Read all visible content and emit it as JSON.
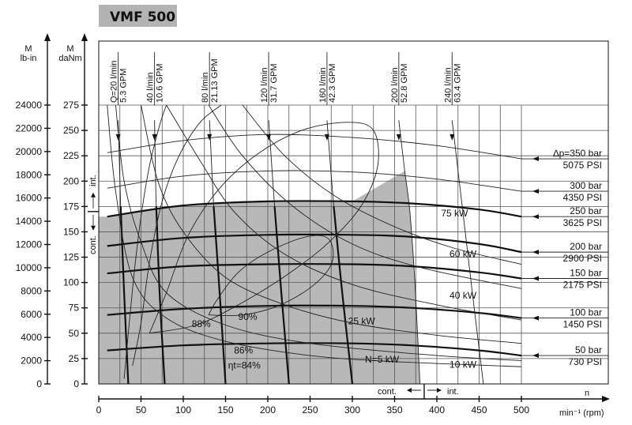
{
  "title": "VMF 500",
  "axes": {
    "left_outer_label_1": "M",
    "left_outer_label_2": "lb-in",
    "left_inner_label_1": "M",
    "left_inner_label_2": "daNm",
    "bottom_label": "min⁻¹ (rpm)",
    "bottom_letter": "n",
    "int_top": "int.",
    "cont_left": "cont.",
    "cont_bottom": "cont.",
    "int_bottom": "int."
  },
  "chart_data": {
    "type": "line",
    "x_ticks": [
      0,
      50,
      100,
      150,
      200,
      250,
      300,
      350,
      400,
      450,
      500
    ],
    "x_tick_labels": [
      "0",
      "50",
      "100",
      "150",
      "200",
      "250",
      "300",
      "350",
      "400",
      "450",
      "500"
    ],
    "y_daNm_ticks": [
      0,
      25,
      50,
      75,
      100,
      125,
      150,
      175,
      200,
      225,
      250,
      275
    ],
    "y_daNm_tick_labels": [
      "0",
      "25",
      "50",
      "75",
      "100",
      "125",
      "150",
      "175",
      "200",
      "225",
      "250",
      "275"
    ],
    "y_lbin_ticks": [
      0,
      2000,
      4000,
      6000,
      8000,
      10000,
      12000,
      14000,
      16000,
      18000,
      20000,
      22000,
      24000
    ],
    "y_lbin_tick_labels": [
      "0",
      "2000",
      "4000",
      "6000",
      "8000",
      "10000",
      "12000",
      "14000",
      "16000",
      "18000",
      "20000",
      "22000",
      "24000"
    ],
    "xlim": [
      0,
      500
    ],
    "ylim_daNm": [
      0,
      275
    ],
    "ylim_lbin": [
      0,
      24000
    ],
    "cont_int_speed": 385,
    "cont_int_torque": 170,
    "flows": [
      {
        "l": "Q=20 l/min",
        "g": "5.3 GPM",
        "curve": [
          [
            23,
            260
          ],
          [
            26,
            175
          ],
          [
            30,
            90
          ],
          [
            35,
            0
          ]
        ],
        "bold_from": 160
      },
      {
        "l": "40 l/min",
        "g": "10.6 GPM",
        "curve": [
          [
            66,
            260
          ],
          [
            68,
            175
          ],
          [
            72,
            90
          ],
          [
            78,
            0
          ]
        ],
        "bold_from": 160
      },
      {
        "l": "80 l/min",
        "g": "21.13 GPM",
        "curve": [
          [
            131,
            260
          ],
          [
            136,
            175
          ],
          [
            143,
            90
          ],
          [
            150,
            0
          ]
        ],
        "bold_from": 160
      },
      {
        "l": "120 l/min",
        "g": "31.7 GPM",
        "curve": [
          [
            201,
            260
          ],
          [
            208,
            175
          ],
          [
            216,
            90
          ],
          [
            225,
            0
          ]
        ],
        "bold_from": 160
      },
      {
        "l": "160 l/min",
        "g": "42.3 GPM",
        "curve": [
          [
            270,
            260
          ],
          [
            278,
            175
          ],
          [
            288,
            90
          ],
          [
            300,
            0
          ]
        ],
        "bold_from": 160
      },
      {
        "l": "200 l/min",
        "g": "52.8 GPM",
        "curve": [
          [
            355,
            260
          ],
          [
            362,
            210
          ],
          [
            368,
            170
          ],
          [
            374,
            100
          ],
          [
            380,
            0
          ]
        ],
        "bold_from": 0
      },
      {
        "l": "240 l/min",
        "g": "63.4 GPM",
        "curve": [
          [
            418,
            260
          ],
          [
            430,
            175
          ],
          [
            442,
            90
          ],
          [
            455,
            0
          ]
        ],
        "bold_from": 999
      }
    ],
    "pressure_lines": [
      {
        "bar": "∆p=350 bar",
        "psi": "5075 PSI",
        "curve": [
          [
            10,
            228
          ],
          [
            100,
            240
          ],
          [
            200,
            246
          ],
          [
            300,
            243
          ],
          [
            400,
            235
          ],
          [
            500,
            222
          ]
        ],
        "bold": false
      },
      {
        "bar": "300 bar",
        "psi": "4350 PSI",
        "curve": [
          [
            10,
            193
          ],
          [
            100,
            205
          ],
          [
            200,
            210
          ],
          [
            300,
            209
          ],
          [
            400,
            202
          ],
          [
            500,
            190
          ]
        ],
        "bold": false
      },
      {
        "bar": "250 bar",
        "psi": "3625 PSI",
        "curve": [
          [
            10,
            165
          ],
          [
            100,
            176
          ],
          [
            200,
            180
          ],
          [
            300,
            180
          ],
          [
            370,
            178
          ],
          [
            450,
            172
          ],
          [
            500,
            165
          ]
        ],
        "bold": true
      },
      {
        "bar": "200 bar",
        "psi": "2900 PSI",
        "curve": [
          [
            10,
            136
          ],
          [
            100,
            144
          ],
          [
            200,
            147
          ],
          [
            300,
            147
          ],
          [
            370,
            145
          ],
          [
            450,
            138
          ],
          [
            500,
            130
          ]
        ],
        "bold": true
      },
      {
        "bar": "150 bar",
        "psi": "2175 PSI",
        "curve": [
          [
            10,
            109
          ],
          [
            100,
            116
          ],
          [
            200,
            118
          ],
          [
            300,
            118
          ],
          [
            370,
            116
          ],
          [
            450,
            110
          ],
          [
            500,
            104
          ]
        ],
        "bold": true
      },
      {
        "bar": "100 bar",
        "psi": "1450 PSI",
        "curve": [
          [
            10,
            68
          ],
          [
            100,
            74
          ],
          [
            200,
            77
          ],
          [
            300,
            77
          ],
          [
            370,
            75
          ],
          [
            450,
            70
          ],
          [
            500,
            65
          ]
        ],
        "bold": true
      },
      {
        "bar": "50 bar",
        "psi": "730 PSI",
        "curve": [
          [
            10,
            33
          ],
          [
            100,
            38
          ],
          [
            200,
            40
          ],
          [
            300,
            40
          ],
          [
            370,
            38
          ],
          [
            450,
            33
          ],
          [
            500,
            28
          ]
        ],
        "bold": true
      }
    ],
    "power_curves": [
      {
        "label": "75 kW",
        "label_at": [
          405,
          165
        ],
        "curve": [
          [
            170,
            275
          ],
          [
            220,
            225
          ],
          [
            280,
            185
          ],
          [
            350,
            155
          ],
          [
            420,
            134
          ],
          [
            500,
            118
          ]
        ]
      },
      {
        "label": "60 kW",
        "label_at": [
          415,
          125
        ],
        "curve": [
          [
            130,
            275
          ],
          [
            170,
            225
          ],
          [
            230,
            175
          ],
          [
            300,
            138
          ],
          [
            380,
            115
          ],
          [
            500,
            94
          ]
        ]
      },
      {
        "label": "40 kW",
        "label_at": [
          415,
          84
        ],
        "curve": [
          [
            80,
            275
          ],
          [
            120,
            220
          ],
          [
            160,
            170
          ],
          [
            220,
            128
          ],
          [
            300,
            98
          ],
          [
            400,
            78
          ],
          [
            500,
            63
          ]
        ]
      },
      {
        "label": "25 kW",
        "label_at": [
          295,
          59
        ],
        "curve": [
          [
            50,
            275
          ],
          [
            70,
            200
          ],
          [
            100,
            150
          ],
          [
            150,
            105
          ],
          [
            220,
            78
          ],
          [
            300,
            60
          ],
          [
            400,
            48
          ],
          [
            500,
            40
          ]
        ]
      },
      {
        "label": "N=5 kW",
        "label_at": [
          315,
          21
        ],
        "curve": [
          [
            10,
            275
          ],
          [
            20,
            190
          ],
          [
            40,
            105
          ],
          [
            80,
            65
          ],
          [
            150,
            42
          ],
          [
            250,
            28
          ],
          [
            350,
            22
          ],
          [
            500,
            17
          ]
        ]
      },
      {
        "label": "10 kW",
        "label_at": [
          415,
          16
        ],
        "curve": [
          [
            20,
            275
          ],
          [
            30,
            200
          ],
          [
            50,
            140
          ],
          [
            80,
            90
          ],
          [
            150,
            58
          ],
          [
            250,
            40
          ],
          [
            400,
            28
          ],
          [
            500,
            23
          ]
        ]
      }
    ],
    "efficiency_curves": [
      {
        "label": "90%",
        "label_at": [
          165,
          63
        ],
        "curve": [
          [
            130,
            68
          ],
          [
            140,
            83
          ],
          [
            165,
            110
          ],
          [
            200,
            130
          ],
          [
            245,
            145
          ],
          [
            272,
            143
          ],
          [
            276,
            120
          ],
          [
            255,
            98
          ],
          [
            215,
            78
          ],
          [
            170,
            68
          ],
          [
            130,
            68
          ]
        ]
      },
      {
        "label": "88%",
        "label_at": [
          110,
          56
        ],
        "curve": [
          [
            60,
            50
          ],
          [
            80,
            90
          ],
          [
            105,
            145
          ],
          [
            140,
            190
          ],
          [
            185,
            225
          ],
          [
            240,
            250
          ],
          [
            295,
            258
          ],
          [
            325,
            250
          ],
          [
            330,
            215
          ],
          [
            310,
            175
          ],
          [
            270,
            138
          ],
          [
            220,
            106
          ],
          [
            165,
            78
          ],
          [
            115,
            58
          ],
          [
            60,
            50
          ]
        ]
      },
      {
        "label": "86%",
        "label_at": [
          160,
          30
        ],
        "curve": [
          [
            40,
            18
          ],
          [
            50,
            60
          ],
          [
            60,
            120
          ],
          [
            75,
            180
          ],
          [
            95,
            225
          ],
          [
            120,
            258
          ],
          [
            145,
            275
          ]
        ]
      },
      {
        "label": "ηt=84%",
        "label_at": [
          153,
          15
        ],
        "curve": [
          [
            30,
            5
          ],
          [
            35,
            50
          ],
          [
            42,
            110
          ],
          [
            50,
            165
          ],
          [
            60,
            215
          ],
          [
            72,
            255
          ],
          [
            80,
            275
          ]
        ]
      }
    ]
  }
}
